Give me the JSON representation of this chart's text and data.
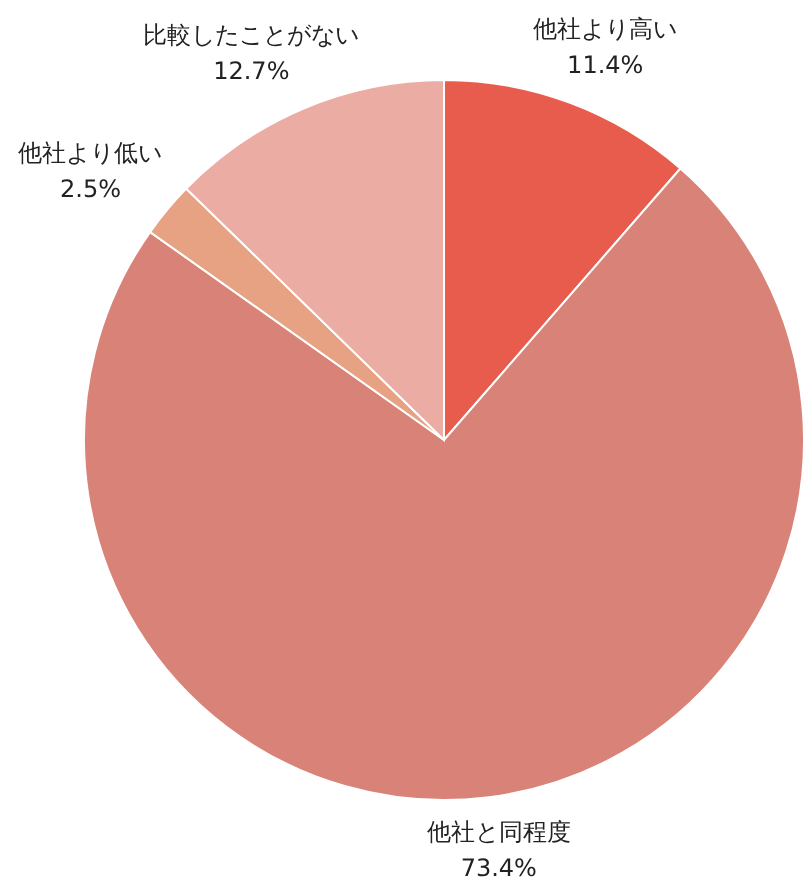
{
  "chart_data": {
    "type": "pie",
    "categories": [
      "他社より高い",
      "他社と同程度",
      "他社より低い",
      "比較したことがない"
    ],
    "values": [
      11.4,
      73.4,
      2.5,
      12.7
    ],
    "value_labels": [
      "11.4%",
      "73.4%",
      "2.5%",
      "12.7%"
    ],
    "colors": [
      "#e85c4e",
      "#d98277",
      "#e6a282",
      "#ebaca3"
    ]
  }
}
